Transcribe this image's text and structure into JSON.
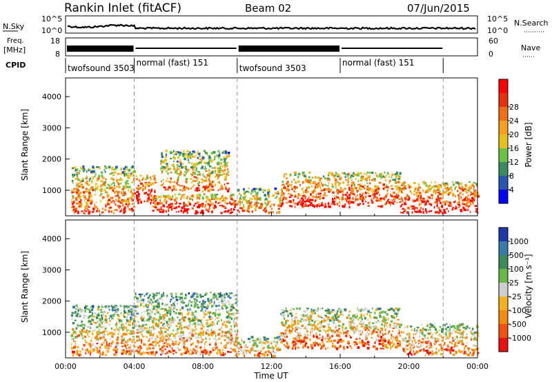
{
  "header": {
    "title": "Rankin Inlet (fitACF)",
    "beam": "Beam 02",
    "date": "07/Jun/2015"
  },
  "top_panels": {
    "nsky_label": "N.Sky",
    "nsearch_label": "N.Search",
    "noise_ticks_left": [
      "10^5",
      "10^0"
    ],
    "noise_ticks_right": [
      "10^5",
      "10^0"
    ],
    "freq_label_line1": "Freq.",
    "freq_label_line2": "[MHz]",
    "freq_ticks": [
      "18",
      "8"
    ],
    "nave_label": "Nave",
    "nave_ticks": [
      "60",
      "0"
    ],
    "cpid_label": "CPID",
    "cpid_segments": [
      {
        "label": "twofsound 3503",
        "start_h": 0.0,
        "end_h": 4.0
      },
      {
        "label": "normal (fast) 151",
        "start_h": 4.0,
        "end_h": 10.0
      },
      {
        "label": "twofsound 3503",
        "start_h": 10.0,
        "end_h": 16.0
      },
      {
        "label": "normal (fast) 151",
        "start_h": 16.0,
        "end_h": 22.0
      }
    ]
  },
  "chart_data": [
    {
      "type": "heatmap",
      "panel": "power",
      "ylabel": "Slant Range [km]",
      "xlabel": "",
      "ylim": [
        180,
        4600
      ],
      "yticks": [
        "1000",
        "2000",
        "3000",
        "4000"
      ],
      "xlim_h": [
        0,
        24
      ],
      "colorbar_label": "Power [dB]",
      "colorbar_ticks": [
        "4",
        "8",
        "12",
        "16",
        "20",
        "24",
        "28"
      ],
      "colorbar_colors": [
        "#0000ff",
        "#2a58b0",
        "#3c8a64",
        "#6fc046",
        "#e6c020",
        "#f7a020",
        "#f07018",
        "#e83010",
        "#ff0000"
      ],
      "echo_bands": [
        {
          "start_h": 0.3,
          "end_h": 4.0,
          "range_low": 300,
          "range_high": 1800,
          "level": 0.55
        },
        {
          "start_h": 4.0,
          "end_h": 5.2,
          "range_low": 600,
          "range_high": 1500,
          "level": 0.9
        },
        {
          "start_h": 5.0,
          "end_h": 10.0,
          "range_low": 300,
          "range_high": 900,
          "level": 0.85
        },
        {
          "start_h": 5.5,
          "end_h": 9.5,
          "range_low": 1000,
          "range_high": 2300,
          "level": 0.45
        },
        {
          "start_h": 10.0,
          "end_h": 12.5,
          "range_low": 300,
          "range_high": 1100,
          "level": 0.5
        },
        {
          "start_h": 12.5,
          "end_h": 19.5,
          "range_low": 500,
          "range_high": 1600,
          "level": 0.7
        },
        {
          "start_h": 19.5,
          "end_h": 24.0,
          "range_low": 300,
          "range_high": 1300,
          "level": 0.85
        }
      ]
    },
    {
      "type": "heatmap",
      "panel": "velocity",
      "ylabel": "Slant Range [km]",
      "xlabel": "Time UT",
      "ylim": [
        180,
        4600
      ],
      "yticks": [
        "1000",
        "2000",
        "3000",
        "4000"
      ],
      "xlim_h": [
        0,
        24
      ],
      "xticks": [
        "00:00",
        "04:00",
        "08:00",
        "12:00",
        "16:00",
        "20:00",
        "00:00"
      ],
      "colorbar_label": "Velocity [m s⁻¹]",
      "colorbar_ticks": [
        "1000",
        "500",
        "100",
        "25",
        "-25",
        "-100",
        "-500",
        "-1000"
      ],
      "colorbar_colors": [
        "#2038a8",
        "#3a7aa8",
        "#3e8a5a",
        "#6ab84a",
        "#cfcfcf",
        "#f5b020",
        "#f58a10",
        "#f05010",
        "#e81010"
      ],
      "echo_bands": [
        {
          "start_h": 0.3,
          "end_h": 4.0,
          "range_low": 300,
          "range_high": 1900,
          "level": 0.5
        },
        {
          "start_h": 4.0,
          "end_h": 10.0,
          "range_low": 300,
          "range_high": 2300,
          "level": 0.45
        },
        {
          "start_h": 10.0,
          "end_h": 12.5,
          "range_low": 250,
          "range_high": 900,
          "level": 0.5
        },
        {
          "start_h": 12.5,
          "end_h": 19.5,
          "range_low": 500,
          "range_high": 1800,
          "level": 0.6
        },
        {
          "start_h": 19.5,
          "end_h": 24.0,
          "range_low": 300,
          "range_high": 1300,
          "level": 0.6
        }
      ]
    }
  ]
}
